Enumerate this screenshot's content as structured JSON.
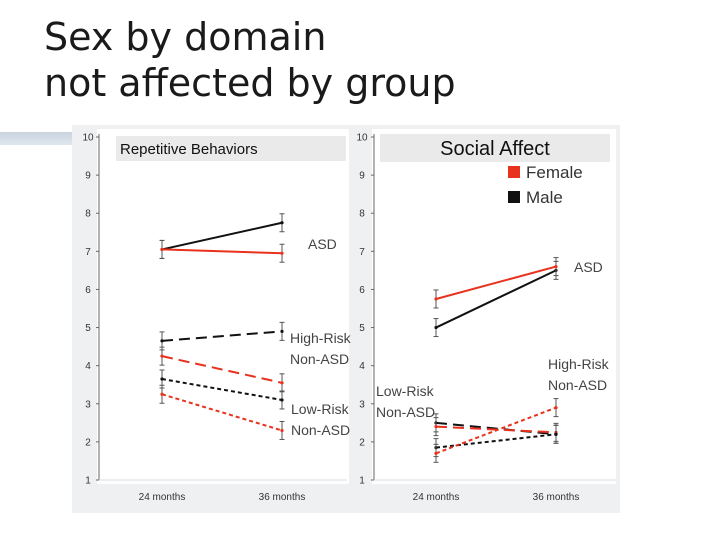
{
  "slide": {
    "title_line1": "Sex by domain",
    "title_line2": "not affected by group"
  },
  "chart_data": [
    {
      "type": "line",
      "title": "Repetitive Behaviors",
      "x": [
        "24 months",
        "36 months"
      ],
      "ylim": [
        1,
        10
      ],
      "yticks": [
        "1",
        "2",
        "3",
        "4",
        "5",
        "6",
        "7",
        "8",
        "9",
        "10"
      ],
      "grid": false,
      "series": [
        {
          "group": "ASD",
          "sex": "Male",
          "style": "solid",
          "values": [
            7.05,
            7.75
          ]
        },
        {
          "group": "ASD",
          "sex": "Female",
          "style": "solid",
          "values": [
            7.05,
            6.95
          ]
        },
        {
          "group": "High-Risk Non-ASD",
          "sex": "Male",
          "style": "dashed",
          "values": [
            4.65,
            4.9
          ]
        },
        {
          "group": "High-Risk Non-ASD",
          "sex": "Female",
          "style": "dashed",
          "values": [
            4.25,
            3.55
          ]
        },
        {
          "group": "Low-Risk Non-ASD",
          "sex": "Male",
          "style": "dotted",
          "values": [
            3.65,
            3.1
          ]
        },
        {
          "group": "Low-Risk Non-ASD",
          "sex": "Female",
          "style": "dotted",
          "values": [
            3.25,
            2.3
          ]
        }
      ],
      "annotations": [
        {
          "lines": [
            "ASD"
          ]
        },
        {
          "lines": [
            "High-Risk",
            "Non-ASD"
          ]
        },
        {
          "lines": [
            "Low-Risk",
            "Non-ASD"
          ]
        }
      ]
    },
    {
      "type": "line",
      "title": "Social Affect",
      "x": [
        "24 months",
        "36 months"
      ],
      "ylim": [
        1,
        10
      ],
      "yticks": [
        "1",
        "2",
        "3",
        "4",
        "5",
        "6",
        "7",
        "8",
        "9",
        "10"
      ],
      "grid": false,
      "legend": {
        "position": "top-right",
        "entries": [
          {
            "label": "Female",
            "color": "#e8321e"
          },
          {
            "label": "Male",
            "color": "#111111"
          }
        ]
      },
      "series": [
        {
          "group": "ASD",
          "sex": "Male",
          "style": "solid",
          "values": [
            5.0,
            6.5
          ]
        },
        {
          "group": "ASD",
          "sex": "Female",
          "style": "solid",
          "values": [
            5.75,
            6.6
          ]
        },
        {
          "group": "High-Risk Non-ASD",
          "sex": "Male",
          "style": "dashed",
          "values": [
            2.5,
            2.2
          ]
        },
        {
          "group": "High-Risk Non-ASD",
          "sex": "Female",
          "style": "dashed",
          "values": [
            2.4,
            2.25
          ]
        },
        {
          "group": "Low-Risk Non-ASD",
          "sex": "Male",
          "style": "dotted",
          "values": [
            1.85,
            2.2
          ]
        },
        {
          "group": "Low-Risk Non-ASD",
          "sex": "Female",
          "style": "dotted",
          "values": [
            1.7,
            2.9
          ]
        }
      ],
      "annotations": [
        {
          "lines": [
            "ASD"
          ]
        },
        {
          "lines": [
            "High-Risk",
            "Non-ASD"
          ]
        },
        {
          "lines": [
            "Low-Risk",
            "Non-ASD"
          ]
        }
      ]
    }
  ],
  "colors": {
    "male": "#111111",
    "female": "#e8321e",
    "axis": "#666666",
    "error_bar": "#555555"
  }
}
